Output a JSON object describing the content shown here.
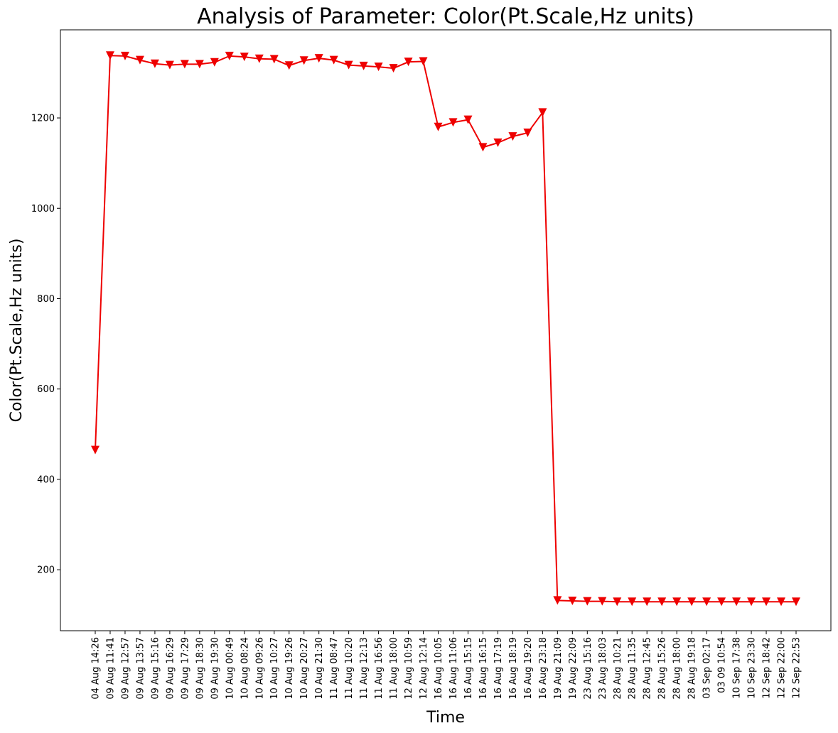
{
  "chart_data": {
    "type": "line",
    "title": "Analysis of Parameter: Color(Pt.Scale,Hz units)",
    "xlabel": "Time",
    "ylabel": "Color(Pt.Scale,Hz units)",
    "ylim": [
      65,
      1395
    ],
    "yticks": [
      200,
      400,
      600,
      800,
      1000,
      1200
    ],
    "grid": false,
    "legend": "none",
    "colors": {
      "series": "#ee0000",
      "axes": "#000000",
      "background": "#ffffff"
    },
    "marker": "triangle-down",
    "x": [
      "04 Aug 14:26",
      "09 Aug 11:41",
      "09 Aug 12:57",
      "09 Aug 13:57",
      "09 Aug 15:16",
      "09 Aug 16:29",
      "09 Aug 17:29",
      "09 Aug 18:30",
      "09 Aug 19:30",
      "10 Aug 00:49",
      "10 Aug 08:24",
      "10 Aug 09:26",
      "10 Aug 10:27",
      "10 Aug 19:26",
      "10 Aug 20:27",
      "10 Aug 21:30",
      "11 Aug 08:47",
      "11 Aug 10:20",
      "11 Aug 12:13",
      "11 Aug 16:56",
      "11 Aug 18:00",
      "12 Aug 10:59",
      "12 Aug 12:14",
      "16 Aug 10:05",
      "16 Aug 11:06",
      "16 Aug 15:15",
      "16 Aug 16:15",
      "16 Aug 17:19",
      "16 Aug 18:19",
      "16 Aug 19:20",
      "16 Aug 23:18",
      "19 Aug 21:09",
      "19 Aug 22:09",
      "23 Aug 15:16",
      "23 Aug 18:03",
      "28 Aug 10:21",
      "28 Aug 11:35",
      "28 Aug 12:45",
      "28 Aug 15:26",
      "28 Aug 18:00",
      "28 Aug 19:18",
      "03 Sep 02:17",
      "03 09 10:54",
      "10 Sep 17:38",
      "10 Sep 23:30",
      "12 Sep 18:42",
      "12 Sep 22:00",
      "12 Sep 22:53"
    ],
    "series": [
      {
        "values": [
          465,
          1338,
          1337,
          1328,
          1320,
          1317,
          1319,
          1319,
          1323,
          1337,
          1335,
          1331,
          1330,
          1316,
          1327,
          1332,
          1328,
          1317,
          1315,
          1313,
          1310,
          1324,
          1325,
          1180,
          1190,
          1196,
          1135,
          1145,
          1159,
          1167,
          1212,
          132,
          131,
          130,
          130,
          129,
          129,
          129,
          129,
          129,
          129,
          129,
          129,
          129,
          129,
          129,
          129,
          129
        ]
      }
    ]
  }
}
